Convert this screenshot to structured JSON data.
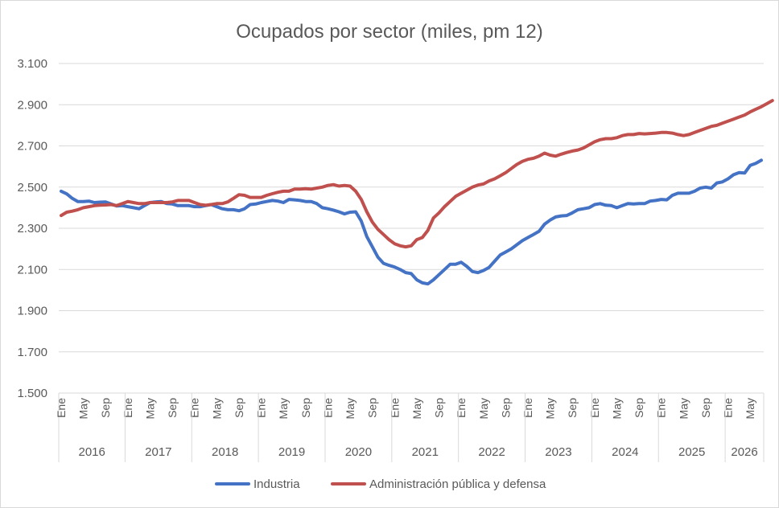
{
  "chart_data": {
    "type": "line",
    "title": "Ocupados por sector (miles, pm 12)",
    "ylim": [
      1500,
      3100
    ],
    "yticks": [
      1500,
      1700,
      1900,
      2100,
      2300,
      2500,
      2700,
      2900,
      3100
    ],
    "ytick_labels": [
      "1.500",
      "1.700",
      "1.900",
      "2.100",
      "2.300",
      "2.500",
      "2.700",
      "2.900",
      "3.100"
    ],
    "month_labels": [
      "Ene",
      "May",
      "Sep"
    ],
    "years": [
      "2016",
      "2017",
      "2018",
      "2019",
      "2020",
      "2021",
      "2022",
      "2023",
      "2024",
      "2025",
      "2026"
    ],
    "grid": true,
    "legend_position": "bottom",
    "series": [
      {
        "name": "Industria",
        "color": "#4472C4",
        "values": [
          2480,
          2467,
          2445,
          2430,
          2430,
          2432,
          2425,
          2427,
          2428,
          2418,
          2408,
          2410,
          2405,
          2400,
          2395,
          2410,
          2425,
          2428,
          2430,
          2420,
          2418,
          2410,
          2410,
          2410,
          2405,
          2405,
          2410,
          2415,
          2405,
          2395,
          2390,
          2390,
          2385,
          2395,
          2415,
          2418,
          2425,
          2430,
          2435,
          2432,
          2425,
          2440,
          2438,
          2435,
          2430,
          2430,
          2420,
          2400,
          2395,
          2388,
          2380,
          2370,
          2378,
          2380,
          2335,
          2260,
          2210,
          2160,
          2130,
          2120,
          2112,
          2100,
          2085,
          2080,
          2050,
          2035,
          2030,
          2050,
          2075,
          2100,
          2125,
          2125,
          2135,
          2115,
          2090,
          2085,
          2095,
          2110,
          2140,
          2170,
          2185,
          2200,
          2220,
          2240,
          2255,
          2270,
          2285,
          2320,
          2340,
          2355,
          2360,
          2362,
          2375,
          2390,
          2395,
          2400,
          2415,
          2420,
          2412,
          2410,
          2400,
          2410,
          2420,
          2418,
          2420,
          2420,
          2432,
          2435,
          2440,
          2438,
          2460,
          2470,
          2470,
          2470,
          2480,
          2495,
          2500,
          2495,
          2520,
          2525,
          2540,
          2560,
          2570,
          2568,
          2605,
          2615,
          2630
        ]
      },
      {
        "name": "Administración pública y defensa",
        "color": "#C0504D",
        "values": [
          2362,
          2378,
          2383,
          2390,
          2400,
          2405,
          2410,
          2412,
          2413,
          2415,
          2410,
          2420,
          2430,
          2425,
          2420,
          2420,
          2425,
          2425,
          2425,
          2425,
          2428,
          2435,
          2435,
          2435,
          2425,
          2415,
          2412,
          2415,
          2420,
          2420,
          2428,
          2445,
          2463,
          2460,
          2450,
          2450,
          2450,
          2460,
          2468,
          2475,
          2480,
          2480,
          2490,
          2490,
          2492,
          2490,
          2495,
          2500,
          2508,
          2512,
          2505,
          2508,
          2505,
          2480,
          2440,
          2380,
          2330,
          2295,
          2270,
          2245,
          2225,
          2215,
          2210,
          2215,
          2245,
          2255,
          2290,
          2350,
          2375,
          2405,
          2430,
          2455,
          2470,
          2485,
          2500,
          2510,
          2515,
          2530,
          2540,
          2555,
          2570,
          2590,
          2610,
          2625,
          2635,
          2640,
          2650,
          2665,
          2655,
          2650,
          2660,
          2668,
          2675,
          2680,
          2690,
          2705,
          2720,
          2730,
          2735,
          2735,
          2740,
          2750,
          2755,
          2755,
          2760,
          2758,
          2760,
          2762,
          2765,
          2765,
          2762,
          2755,
          2750,
          2755,
          2765,
          2775,
          2785,
          2795,
          2800,
          2810,
          2820,
          2830,
          2840,
          2850,
          2865,
          2878,
          2890,
          2905,
          2920
        ]
      }
    ]
  }
}
